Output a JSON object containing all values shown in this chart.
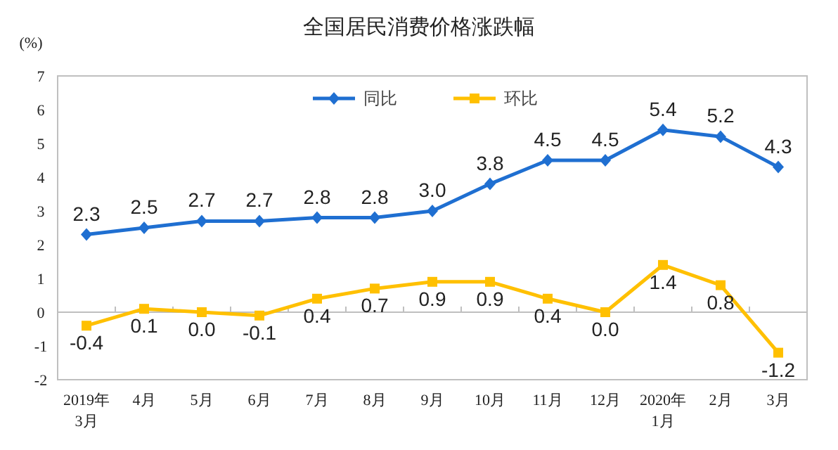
{
  "chart_data": {
    "type": "line",
    "title": "全国居民消费价格涨跌幅",
    "ylabel": "(%)",
    "categories": [
      "2019年\n3月",
      "4月",
      "5月",
      "6月",
      "7月",
      "8月",
      "9月",
      "10月",
      "11月",
      "12月",
      "2020年\n1月",
      "2月",
      "3月"
    ],
    "series": [
      {
        "name": "同比",
        "color": "#1f6fd1",
        "marker": "diamond",
        "values": [
          2.3,
          2.5,
          2.7,
          2.7,
          2.8,
          2.8,
          3.0,
          3.8,
          4.5,
          4.5,
          5.4,
          5.2,
          4.3
        ],
        "value_labels": [
          "2.3",
          "2.5",
          "2.7",
          "2.7",
          "2.8",
          "2.8",
          "3.0",
          "3.8",
          "4.5",
          "4.5",
          "5.4",
          "5.2",
          "4.3"
        ]
      },
      {
        "name": "环比",
        "color": "#ffc000",
        "marker": "square",
        "values": [
          -0.4,
          0.1,
          0.0,
          -0.1,
          0.4,
          0.7,
          0.9,
          0.9,
          0.4,
          0.0,
          1.4,
          0.8,
          -1.2
        ],
        "value_labels": [
          "-0.4",
          "0.1",
          "0.0",
          "-0.1",
          "0.4",
          "0.7",
          "0.9",
          "0.9",
          "0.4",
          "0.0",
          "1.4",
          "0.8",
          "-1.2"
        ]
      }
    ],
    "ylim": [
      -2,
      7
    ],
    "yticks": [
      -2,
      -1,
      0,
      1,
      2,
      3,
      4,
      5,
      6,
      7
    ],
    "legend": "top",
    "line_style": "solid"
  }
}
